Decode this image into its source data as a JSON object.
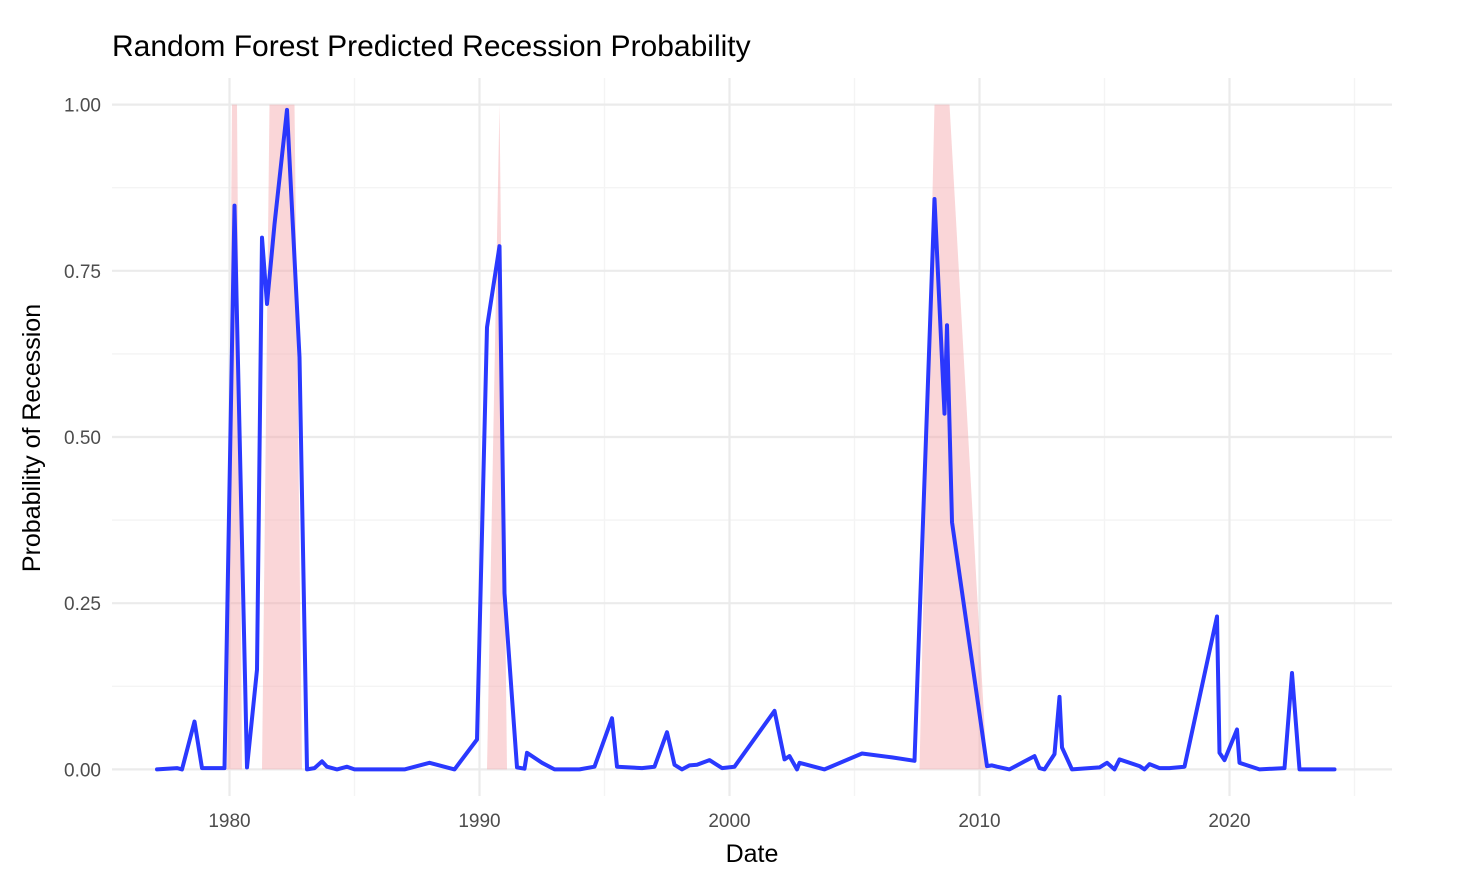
{
  "chart_data": {
    "type": "line",
    "title": "Random Forest Predicted Recession Probability",
    "xlabel": "Date",
    "ylabel": "Probability of Recession",
    "xlim": [
      1975.3,
      2026.5
    ],
    "ylim": [
      -0.04,
      1.04
    ],
    "x_ticks": [
      1980,
      1990,
      2000,
      2010,
      2020
    ],
    "x_tick_labels": [
      "1980",
      "1990",
      "2000",
      "2010",
      "2020"
    ],
    "y_ticks": [
      0,
      0.25,
      0.5,
      0.75,
      1.0
    ],
    "y_tick_labels": [
      "0.00",
      "0.25",
      "0.50",
      "0.75",
      "1.00"
    ],
    "grid": true,
    "colors": {
      "line": "#1f2eff",
      "recession_shade": "#f4a3a8",
      "grid_major": "#ebebeb",
      "grid_minor": "#f4f4f4",
      "background": "#ffffff"
    },
    "recession_bands": [
      {
        "x": [
          1979.9,
          1980.1,
          1980.3,
          1980.5
        ],
        "y": [
          0,
          1,
          1,
          0
        ]
      },
      {
        "x": [
          1981.3,
          1981.6,
          1982.6,
          1982.9
        ],
        "y": [
          0,
          1,
          1,
          0
        ]
      },
      {
        "x": [
          1990.3,
          1990.8,
          1991.1
        ],
        "y": [
          0,
          1,
          0
        ]
      },
      {
        "x": [
          2007.6,
          2008.2,
          2008.8,
          2010.3
        ],
        "y": [
          0,
          1,
          1,
          0
        ]
      }
    ],
    "series": [
      {
        "type": "line",
        "x": [
          1977.1,
          1977.9,
          1978.1,
          1978.6,
          1978.9,
          1979.8,
          1980.2,
          1980.7,
          1981.1,
          1981.3,
          1981.5,
          1981.8,
          1982.3,
          1982.8,
          1983.1,
          1983.4,
          1983.7,
          1983.9,
          1984.3,
          1984.7,
          1985.0,
          1986.0,
          1987.0,
          1988.0,
          1989.0,
          1989.9,
          1990.3,
          1990.8,
          1991.0,
          1991.5,
          1991.8,
          1991.9,
          1992.5,
          1993.0,
          1994.0,
          1994.6,
          1995.3,
          1995.5,
          1996.5,
          1997.0,
          1997.5,
          1997.8,
          1998.1,
          1998.4,
          1998.7,
          1999.2,
          1999.7,
          2000.2,
          2001.8,
          2002.2,
          2002.4,
          2002.7,
          2002.8,
          2003.8,
          2005.3,
          2006.5,
          2007.4,
          2008.2,
          2008.6,
          2008.7,
          2008.9,
          2010.3,
          2010.5,
          2010.7,
          2011.2,
          2011.8,
          2012.2,
          2012.4,
          2012.6,
          2013.0,
          2013.2,
          2013.3,
          2013.7,
          2014.8,
          2015.1,
          2015.4,
          2015.6,
          2016.4,
          2016.6,
          2016.8,
          2017.2,
          2017.6,
          2018.2,
          2019.5,
          2019.6,
          2019.8,
          2020.3,
          2020.4,
          2021.2,
          2022.2,
          2022.5,
          2022.8,
          2024.2
        ],
        "y": [
          0.0,
          0.002,
          0.0,
          0.072,
          0.002,
          0.002,
          0.848,
          0.003,
          0.15,
          0.8,
          0.7,
          0.82,
          0.992,
          0.62,
          0.0,
          0.002,
          0.012,
          0.004,
          0.0,
          0.004,
          0.0,
          0.0,
          0.0,
          0.01,
          0.0,
          0.045,
          0.665,
          0.787,
          0.265,
          0.003,
          0.001,
          0.025,
          0.01,
          0.0,
          0.0,
          0.004,
          0.077,
          0.004,
          0.002,
          0.004,
          0.056,
          0.007,
          0.0,
          0.006,
          0.007,
          0.014,
          0.002,
          0.004,
          0.088,
          0.015,
          0.02,
          0.0,
          0.01,
          0.0,
          0.024,
          0.018,
          0.013,
          0.858,
          0.535,
          0.668,
          0.372,
          0.005,
          0.006,
          0.004,
          0.0,
          0.012,
          0.02,
          0.002,
          0.0,
          0.023,
          0.109,
          0.033,
          0.0,
          0.003,
          0.01,
          0.0,
          0.015,
          0.005,
          0.0,
          0.008,
          0.002,
          0.002,
          0.004,
          0.23,
          0.025,
          0.014,
          0.06,
          0.01,
          0.0,
          0.002,
          0.145,
          0.0,
          0.0
        ]
      }
    ]
  }
}
